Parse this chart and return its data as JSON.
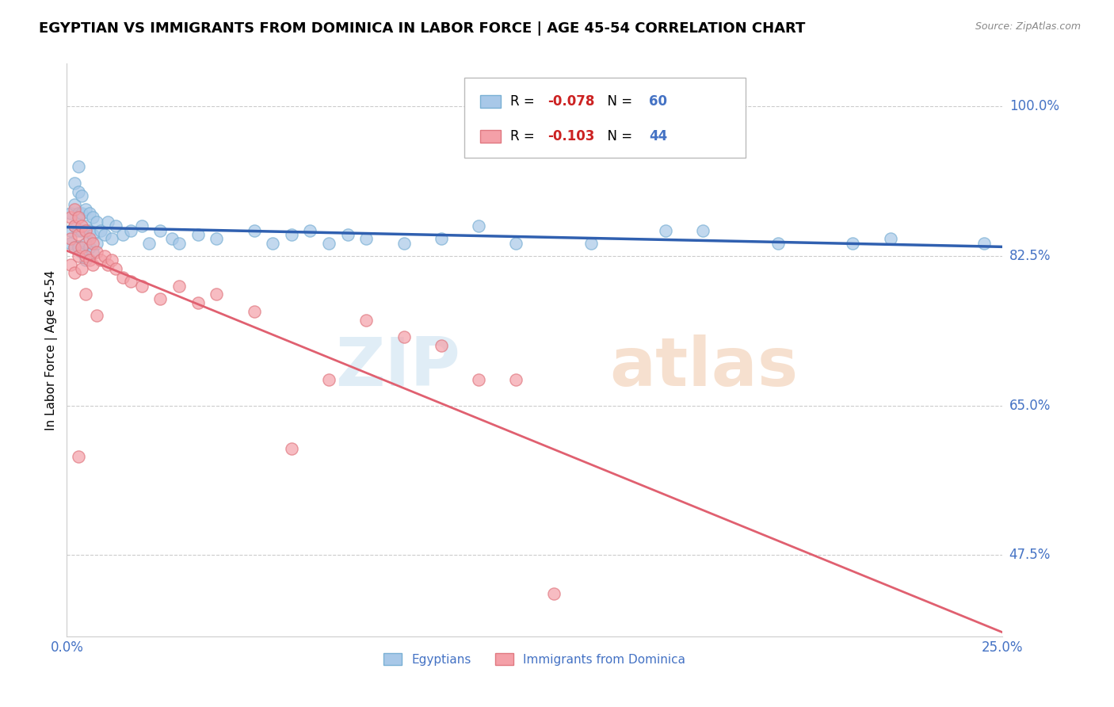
{
  "title": "EGYPTIAN VS IMMIGRANTS FROM DOMINICA IN LABOR FORCE | AGE 45-54 CORRELATION CHART",
  "source": "Source: ZipAtlas.com",
  "ylabel": "In Labor Force | Age 45-54",
  "xlim": [
    0.0,
    0.25
  ],
  "ylim": [
    0.38,
    1.05
  ],
  "blue_R": -0.078,
  "blue_N": 60,
  "pink_R": -0.103,
  "pink_N": 44,
  "blue_color": "#a8c8e8",
  "pink_color": "#f4a0a8",
  "blue_edge_color": "#7ab0d4",
  "pink_edge_color": "#e07880",
  "blue_line_color": "#3060b0",
  "pink_line_color": "#e06070",
  "right_label_color": "#4472c4",
  "grid_color": "#cccccc",
  "ytick_labels": {
    "1.0": "100.0%",
    "0.825": "82.5%",
    "0.65": "65.0%",
    "0.475": "47.5%"
  },
  "legend_label_blue": "Egyptians",
  "legend_label_pink": "Immigrants from Dominica",
  "blue_scatter_x": [
    0.001,
    0.001,
    0.001,
    0.002,
    0.002,
    0.002,
    0.002,
    0.003,
    0.003,
    0.003,
    0.003,
    0.003,
    0.004,
    0.004,
    0.004,
    0.004,
    0.005,
    0.005,
    0.005,
    0.005,
    0.006,
    0.006,
    0.006,
    0.007,
    0.007,
    0.007,
    0.008,
    0.008,
    0.009,
    0.01,
    0.011,
    0.012,
    0.013,
    0.015,
    0.017,
    0.02,
    0.022,
    0.025,
    0.028,
    0.03,
    0.035,
    0.04,
    0.05,
    0.055,
    0.06,
    0.065,
    0.07,
    0.075,
    0.08,
    0.09,
    0.1,
    0.11,
    0.12,
    0.14,
    0.16,
    0.17,
    0.19,
    0.21,
    0.22,
    0.245
  ],
  "blue_scatter_y": [
    0.875,
    0.855,
    0.84,
    0.91,
    0.885,
    0.86,
    0.835,
    0.93,
    0.9,
    0.875,
    0.855,
    0.835,
    0.895,
    0.875,
    0.855,
    0.83,
    0.88,
    0.86,
    0.84,
    0.82,
    0.875,
    0.855,
    0.835,
    0.87,
    0.85,
    0.83,
    0.865,
    0.84,
    0.855,
    0.85,
    0.865,
    0.845,
    0.86,
    0.85,
    0.855,
    0.86,
    0.84,
    0.855,
    0.845,
    0.84,
    0.85,
    0.845,
    0.855,
    0.84,
    0.85,
    0.855,
    0.84,
    0.85,
    0.845,
    0.84,
    0.845,
    0.86,
    0.84,
    0.84,
    0.855,
    0.855,
    0.84,
    0.84,
    0.845,
    0.84
  ],
  "pink_scatter_x": [
    0.001,
    0.001,
    0.001,
    0.002,
    0.002,
    0.002,
    0.002,
    0.003,
    0.003,
    0.003,
    0.003,
    0.004,
    0.004,
    0.004,
    0.005,
    0.005,
    0.005,
    0.006,
    0.006,
    0.007,
    0.007,
    0.008,
    0.008,
    0.009,
    0.01,
    0.011,
    0.012,
    0.013,
    0.015,
    0.017,
    0.02,
    0.025,
    0.03,
    0.035,
    0.04,
    0.05,
    0.06,
    0.07,
    0.08,
    0.09,
    0.1,
    0.11,
    0.12,
    0.13
  ],
  "pink_scatter_y": [
    0.87,
    0.845,
    0.815,
    0.88,
    0.86,
    0.835,
    0.805,
    0.87,
    0.85,
    0.825,
    0.59,
    0.86,
    0.835,
    0.81,
    0.855,
    0.825,
    0.78,
    0.845,
    0.82,
    0.84,
    0.815,
    0.83,
    0.755,
    0.82,
    0.825,
    0.815,
    0.82,
    0.81,
    0.8,
    0.795,
    0.79,
    0.775,
    0.79,
    0.77,
    0.78,
    0.76,
    0.6,
    0.68,
    0.75,
    0.73,
    0.72,
    0.68,
    0.68,
    0.43
  ]
}
